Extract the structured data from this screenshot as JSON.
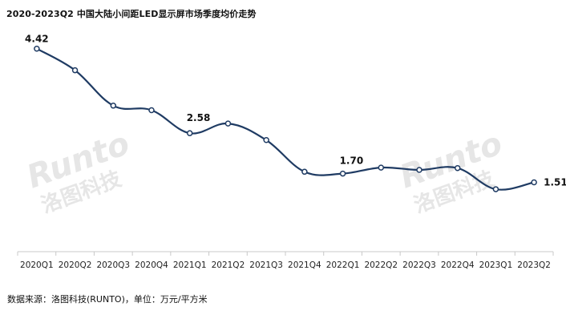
{
  "title": "2020-2023Q2 中国大陆小间距LED显示屏市场季度均价走势",
  "source": "数据来源：洛图科技(RUNTO)，单位：万元/平方米",
  "watermark": {
    "latin": "Runto",
    "chinese": "洛图科技"
  },
  "colors": {
    "line": "#1f3b63",
    "marker_fill": "#ffffff",
    "axis": "#c8c8c8",
    "tick_label": "#222222",
    "watermark": "#e6e6e6"
  },
  "chart_data": {
    "type": "line",
    "title": "2020-2023Q2 中国大陆小间距LED显示屏市场季度均价走势",
    "xlabel": "",
    "ylabel": "",
    "ylim": [
      0,
      5
    ],
    "grid": false,
    "legend": "none",
    "categories": [
      "2020Q1",
      "2020Q2",
      "2020Q3",
      "2020Q4",
      "2021Q1",
      "2021Q2",
      "2021Q3",
      "2021Q4",
      "2022Q1",
      "2022Q2",
      "2022Q3",
      "2022Q4",
      "2023Q1",
      "2023Q2"
    ],
    "series": [
      {
        "values": [
          4.42,
          3.95,
          3.18,
          3.08,
          2.58,
          2.79,
          2.43,
          1.74,
          1.7,
          1.83,
          1.78,
          1.82,
          1.36,
          1.51
        ]
      }
    ],
    "data_labels": [
      {
        "index": 0,
        "text": "4.42"
      },
      {
        "index": 4,
        "text": "2.58"
      },
      {
        "index": 8,
        "text": "1.70"
      },
      {
        "index": 13,
        "text": "1.51"
      }
    ]
  }
}
